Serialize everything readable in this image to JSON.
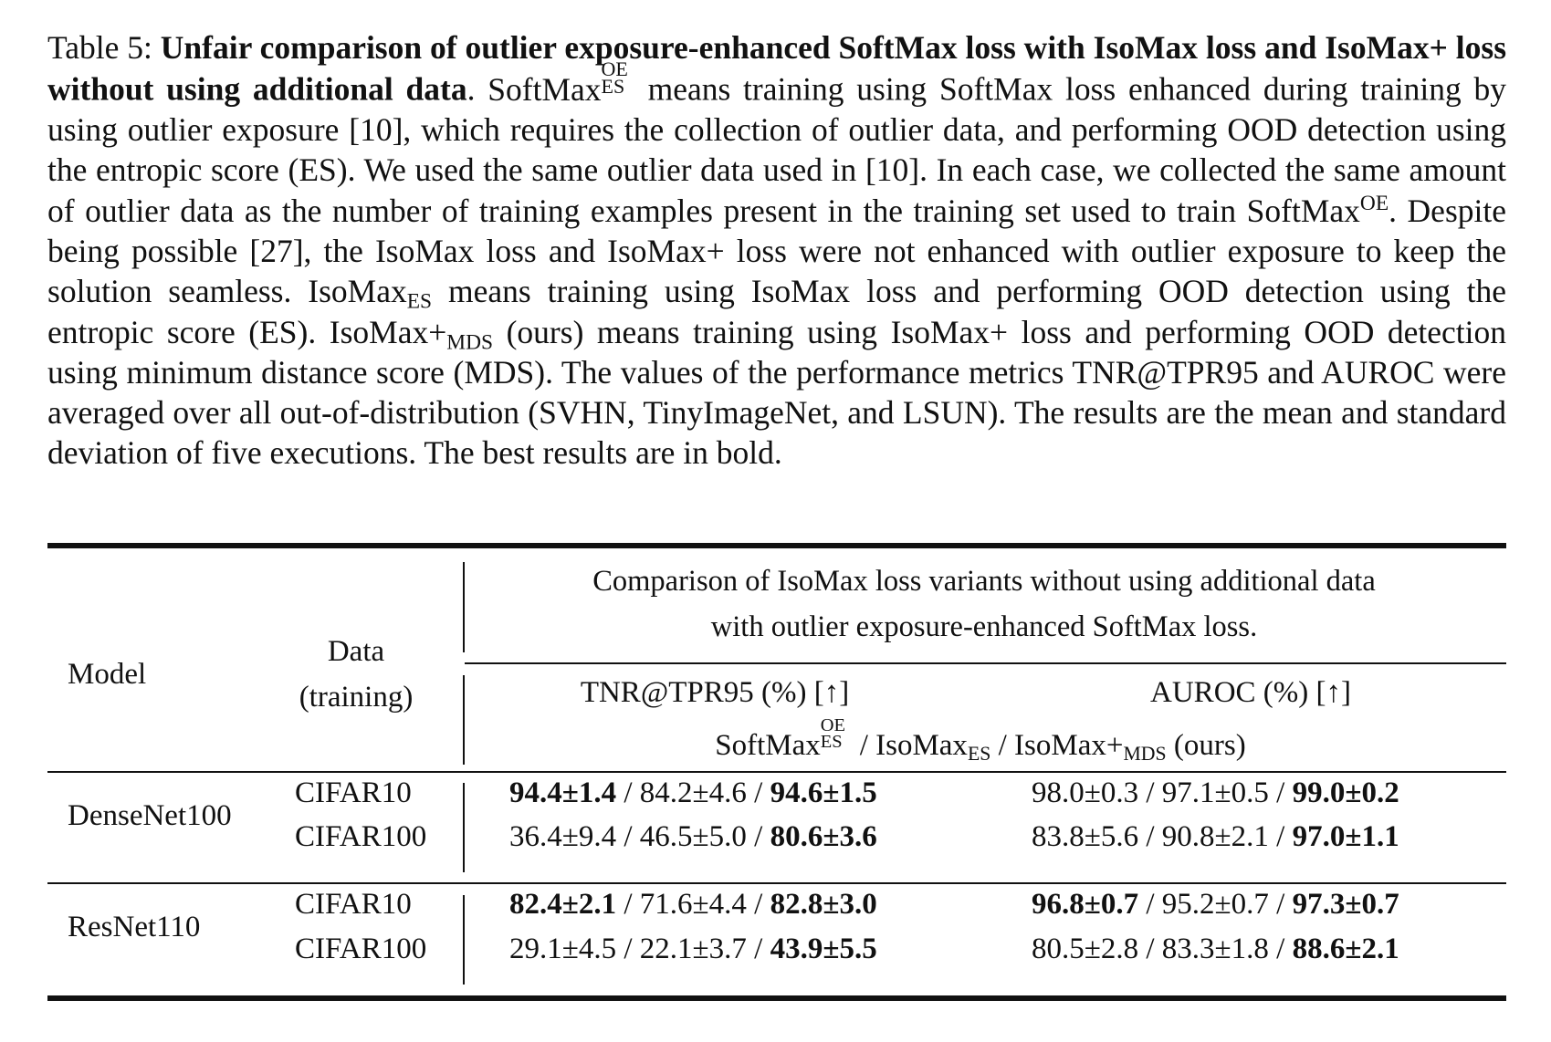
{
  "caption": {
    "label": "Table 5:",
    "bold_title": "Unfair comparison of outlier exposure-enhanced SoftMax loss with IsoMax loss and IsoMax+ loss without using additional data",
    "bold_end": ".",
    "softmax_name": "SoftMax",
    "oe_sup": "OE",
    "es_sub": "ES",
    "text_1": " means training using SoftMax loss enhanced during training by using outlier exposure [10], which requires the collection of outlier data, and performing OOD detection using the entropic score (ES). We used the same outlier data used in [10]. In each case, we collected the same amount of outlier data as the number of training examples present in the training set used to train ",
    "softmax_oe_name": "SoftMax",
    "softmax_oe_sup": "OE",
    "text_2": ". Despite being possible [27], the IsoMax loss and IsoMax+ loss were not enhanced with outlier exposure to keep the solution seamless. ",
    "isomax_name": "IsoMax",
    "isomax_sub": "ES",
    "text_3": " means training using IsoMax loss and performing OOD detection using the entropic score (ES). ",
    "isomaxplus_name": "IsoMax+",
    "isomaxplus_sub": "MDS",
    "text_4": " (ours) means training using IsoMax+ loss and performing OOD detection using minimum distance score (MDS). The values of the performance metrics TNR@TPR95 and AUROC were averaged over all out-of-distribution (SVHN, TinyImageNet, and LSUN). The results are the mean and standard deviation of five executions. The best results are in bold."
  },
  "table": {
    "header": {
      "model": "Model",
      "data_line1": "Data",
      "data_line2": "(training)",
      "group_line1": "Comparison of IsoMax loss variants without using additional data",
      "group_line2": "with outlier exposure-enhanced SoftMax loss.",
      "metric_tnr": "TNR@TPR95 (%) [↑]",
      "metric_auroc": "AUROC (%) [↑]",
      "methods": {
        "softmax": "SoftMax",
        "softmax_sup": "OE",
        "softmax_sub": "ES",
        "sep1": " / ",
        "isomax": "IsoMax",
        "isomax_sub": "ES",
        "sep2": " / ",
        "isomaxplus": "IsoMax+",
        "isomaxplus_sub": "MDS",
        "ours": " (ours)"
      }
    },
    "sep": " / ",
    "rows": [
      {
        "model": "DenseNet100",
        "data": "CIFAR10",
        "tnr": [
          {
            "value": "94.4±1.4",
            "bold": true
          },
          {
            "value": "84.2±4.6",
            "bold": false
          },
          {
            "value": "94.6±1.5",
            "bold": true
          }
        ],
        "auroc": [
          {
            "value": "98.0±0.3",
            "bold": false
          },
          {
            "value": "97.1±0.5",
            "bold": false
          },
          {
            "value": "99.0±0.2",
            "bold": true
          }
        ]
      },
      {
        "model": "",
        "data": "CIFAR100",
        "tnr": [
          {
            "value": "36.4±9.4",
            "bold": false
          },
          {
            "value": "46.5±5.0",
            "bold": false
          },
          {
            "value": "80.6±3.6",
            "bold": true
          }
        ],
        "auroc": [
          {
            "value": "83.8±5.6",
            "bold": false
          },
          {
            "value": "90.8±2.1",
            "bold": false
          },
          {
            "value": "97.0±1.1",
            "bold": true
          }
        ]
      },
      {
        "model": "ResNet110",
        "data": "CIFAR10",
        "tnr": [
          {
            "value": "82.4±2.1",
            "bold": true
          },
          {
            "value": "71.6±4.4",
            "bold": false
          },
          {
            "value": "82.8±3.0",
            "bold": true
          }
        ],
        "auroc": [
          {
            "value": "96.8±0.7",
            "bold": true
          },
          {
            "value": "95.2±0.7",
            "bold": false
          },
          {
            "value": "97.3±0.7",
            "bold": true
          }
        ]
      },
      {
        "model": "",
        "data": "CIFAR100",
        "tnr": [
          {
            "value": "29.1±4.5",
            "bold": false
          },
          {
            "value": "22.1±3.7",
            "bold": false
          },
          {
            "value": "43.9±5.5",
            "bold": true
          }
        ],
        "auroc": [
          {
            "value": "80.5±2.8",
            "bold": false
          },
          {
            "value": "83.3±1.8",
            "bold": false
          },
          {
            "value": "88.6±2.1",
            "bold": true
          }
        ]
      }
    ]
  }
}
